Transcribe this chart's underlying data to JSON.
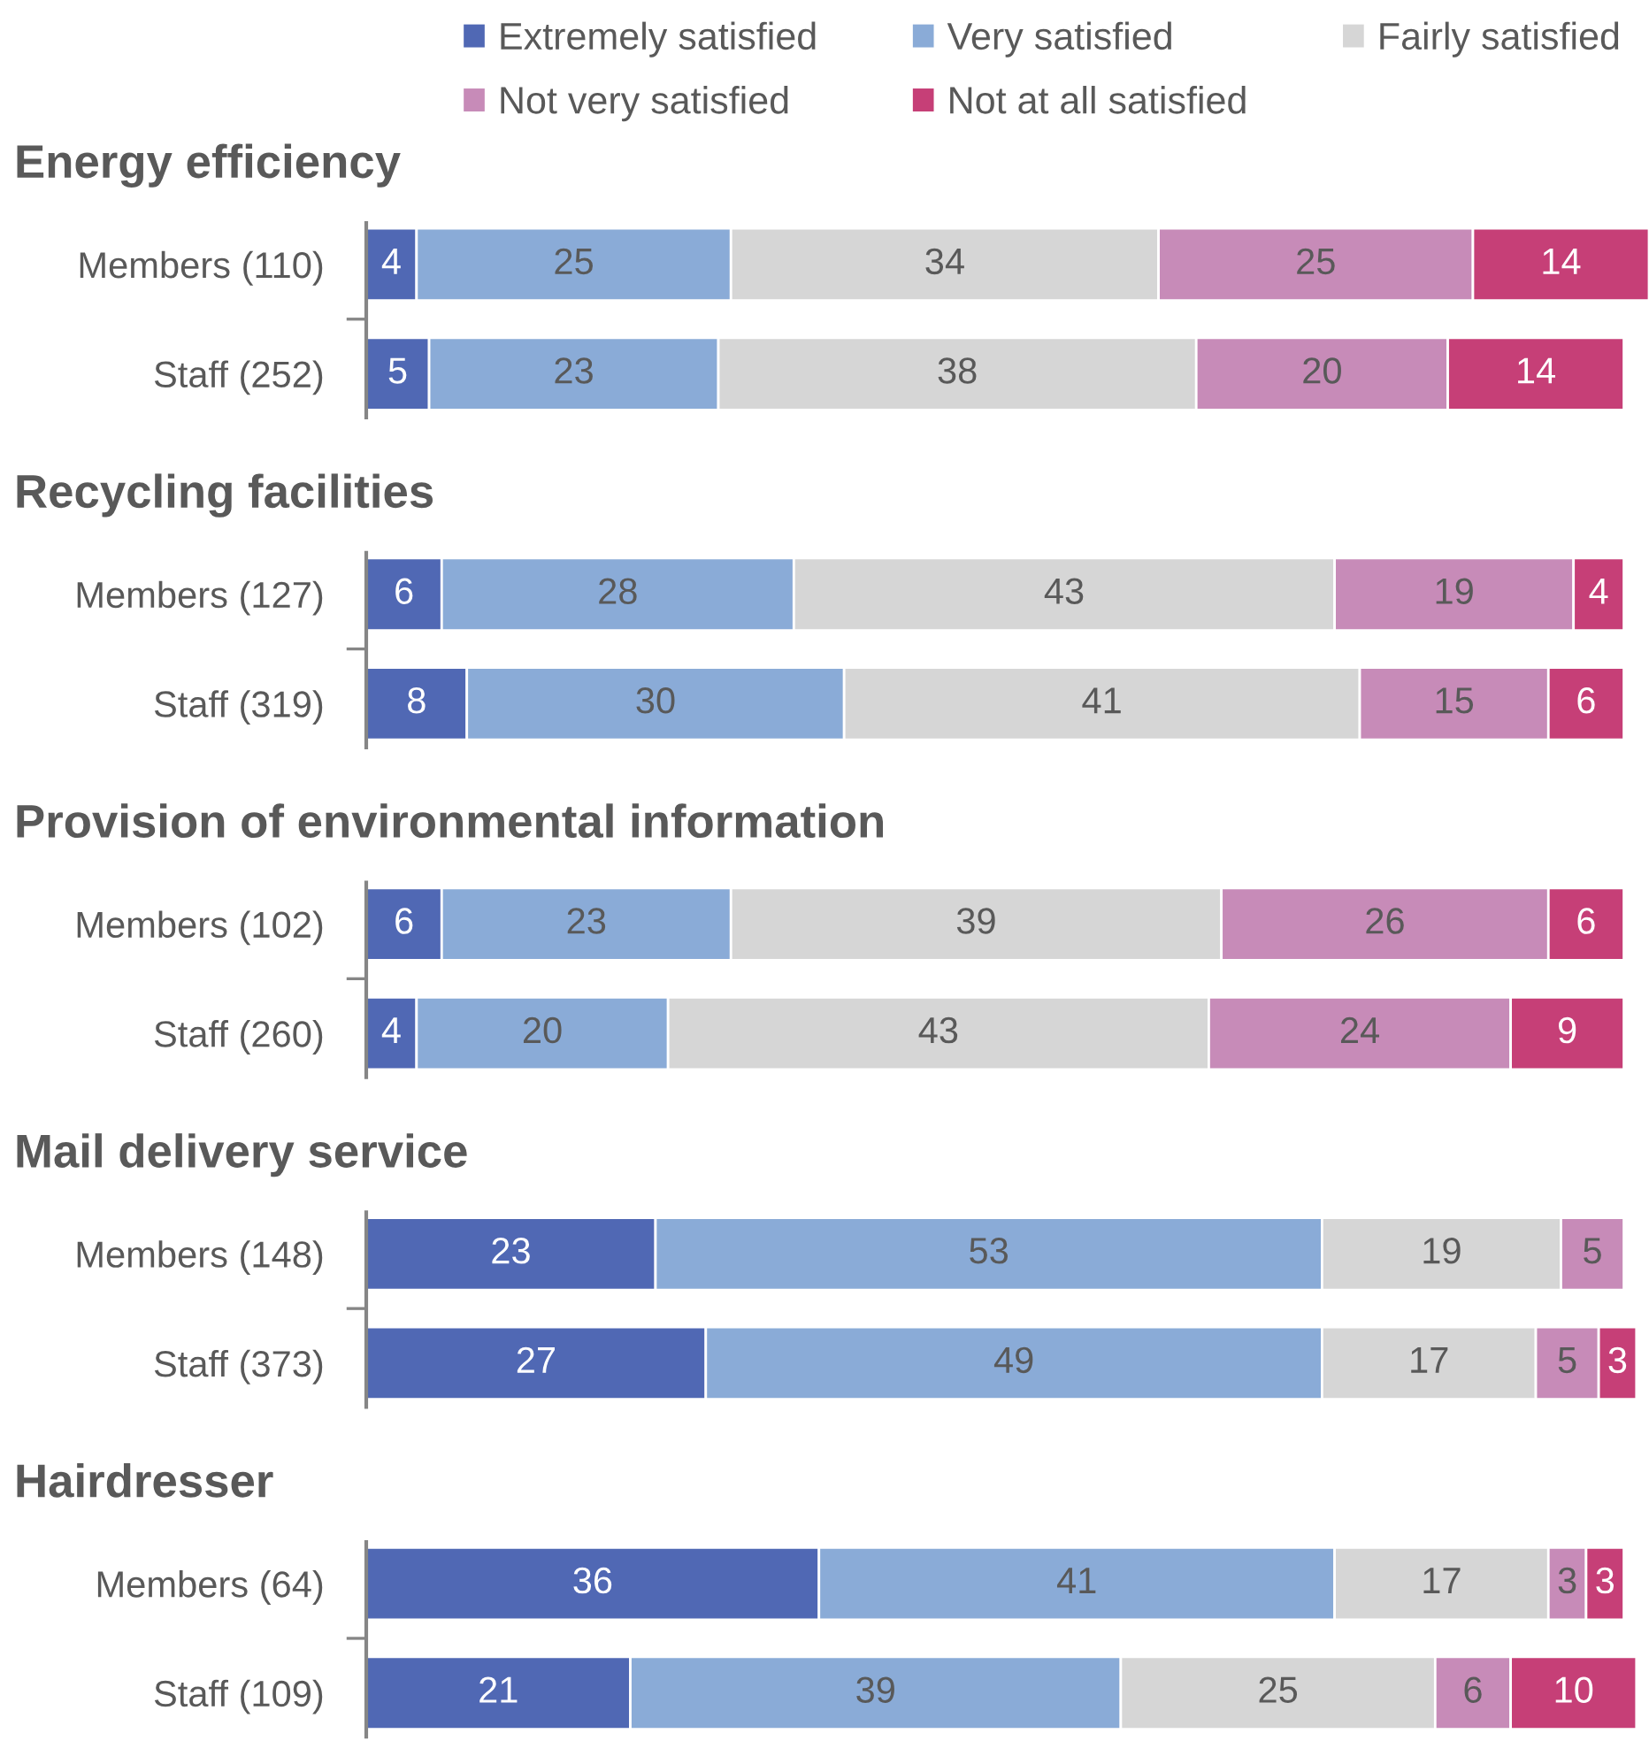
{
  "chart_data": [
    {
      "type": "bar",
      "orientation": "horizontal",
      "stacked": true,
      "title": "Energy efficiency",
      "categories": [
        "Members (110)",
        "Staff (252)"
      ],
      "series": [
        {
          "name": "Extremely satisfied",
          "color": "#5068b4",
          "values": [
            4,
            5
          ]
        },
        {
          "name": "Very satisfied",
          "color": "#8aabd7",
          "values": [
            25,
            23
          ]
        },
        {
          "name": "Fairly satisfied",
          "color": "#d6d6d6",
          "values": [
            34,
            38
          ]
        },
        {
          "name": "Not very satisfied",
          "color": "#c78bb8",
          "values": [
            25,
            20
          ]
        },
        {
          "name": "Not at all satisfied",
          "color": "#c63f77",
          "values": [
            14,
            14
          ]
        }
      ],
      "tick_labels": "y",
      "data_labels": true,
      "legend": "top"
    },
    {
      "type": "bar",
      "orientation": "horizontal",
      "stacked": true,
      "title": "Recycling facilities",
      "categories": [
        "Members (127)",
        "Staff (319)"
      ],
      "series": [
        {
          "color": "#5068b4",
          "values": [
            6,
            8
          ]
        },
        {
          "color": "#8aabd7",
          "values": [
            28,
            30
          ]
        },
        {
          "color": "#d6d6d6",
          "values": [
            43,
            41
          ]
        },
        {
          "color": "#c78bb8",
          "values": [
            19,
            15
          ]
        },
        {
          "color": "#c63f77",
          "values": [
            4,
            6
          ]
        }
      ],
      "tick_labels": "y",
      "data_labels": true
    },
    {
      "type": "bar",
      "orientation": "horizontal",
      "stacked": true,
      "title": "Provision of environmental information",
      "categories": [
        "Members (102)",
        "Staff (260)"
      ],
      "series": [
        {
          "color": "#5068b4",
          "values": [
            6,
            4
          ]
        },
        {
          "color": "#8aabd7",
          "values": [
            23,
            20
          ]
        },
        {
          "color": "#d6d6d6",
          "values": [
            39,
            43
          ]
        },
        {
          "color": "#c78bb8",
          "values": [
            26,
            24
          ]
        },
        {
          "color": "#c63f77",
          "values": [
            6,
            9
          ]
        }
      ],
      "tick_labels": "y",
      "data_labels": true
    },
    {
      "type": "bar",
      "orientation": "horizontal",
      "stacked": true,
      "title": "Mail delivery service",
      "categories": [
        "Members (148)",
        "Staff (373)"
      ],
      "series": [
        {
          "color": "#5068b4",
          "values": [
            23,
            27
          ]
        },
        {
          "color": "#8aabd7",
          "values": [
            53,
            49
          ]
        },
        {
          "color": "#d6d6d6",
          "values": [
            19,
            17
          ]
        },
        {
          "color": "#c78bb8",
          "values": [
            5,
            5
          ]
        },
        {
          "color": "#c63f77",
          "values": [
            null,
            3
          ]
        }
      ],
      "tick_labels": "y",
      "data_labels": true
    },
    {
      "type": "bar",
      "orientation": "horizontal",
      "stacked": true,
      "title": "Hairdresser",
      "categories": [
        "Members (64)",
        "Staff (109)"
      ],
      "series": [
        {
          "color": "#5068b4",
          "values": [
            36,
            21
          ]
        },
        {
          "color": "#8aabd7",
          "values": [
            41,
            39
          ]
        },
        {
          "color": "#d6d6d6",
          "values": [
            17,
            25
          ]
        },
        {
          "color": "#c78bb8",
          "values": [
            3,
            6
          ]
        },
        {
          "color": "#c63f77",
          "values": [
            3,
            10
          ]
        }
      ],
      "tick_labels": "y",
      "data_labels": true
    }
  ]
}
